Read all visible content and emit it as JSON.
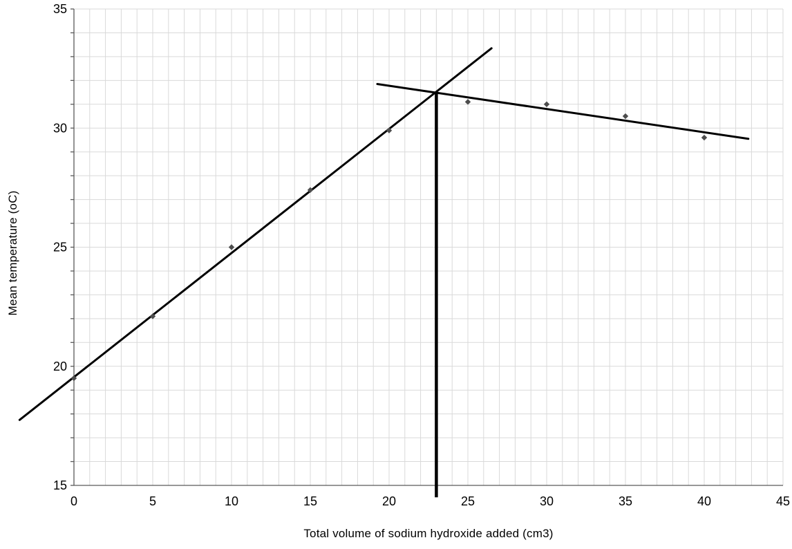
{
  "chart_data": {
    "type": "scatter",
    "title": "",
    "xlabel": "Total volume of sodium hydroxide added (cm3)",
    "ylabel": "Mean temperature (oC)",
    "xlim": [
      0,
      45
    ],
    "ylim": [
      15,
      35
    ],
    "x_tick_step": 5,
    "y_tick_step": 5,
    "minor_grid_step_x": 1,
    "minor_grid_step_y": 1,
    "grid": true,
    "legend": "none",
    "x_tick_labels": [
      "0",
      "5",
      "10",
      "15",
      "20",
      "25",
      "30",
      "35",
      "40",
      "45"
    ],
    "y_tick_labels": [
      "15",
      "20",
      "25",
      "30",
      "35"
    ],
    "points": [
      {
        "x": 0,
        "y": 19.5
      },
      {
        "x": 5,
        "y": 22.1
      },
      {
        "x": 10,
        "y": 25.0
      },
      {
        "x": 15,
        "y": 27.4
      },
      {
        "x": 20,
        "y": 29.9
      },
      {
        "x": 25,
        "y": 31.1
      },
      {
        "x": 30,
        "y": 31.0
      },
      {
        "x": 35,
        "y": 30.5
      },
      {
        "x": 40,
        "y": 29.6
      }
    ],
    "trend_lines": [
      {
        "name": "rising-trend-line",
        "x1": -3.45,
        "y1": 17.75,
        "x2": 26.5,
        "y2": 33.35
      },
      {
        "name": "falling-trend-line",
        "x1": 19.25,
        "y1": 31.85,
        "x2": 42.8,
        "y2": 29.55
      }
    ],
    "intersection": {
      "x": 23,
      "y": 31.5
    },
    "drop_line": {
      "x": 23,
      "y_top": 31.5,
      "y_bottom": 14.5
    },
    "colors": {
      "background": "#ffffff",
      "grid": "#d9d9d9",
      "axis": "#595959",
      "trend_line": "#000000",
      "drop_line": "#000000",
      "marker": "#4d4d4d",
      "text": "#000000"
    }
  }
}
